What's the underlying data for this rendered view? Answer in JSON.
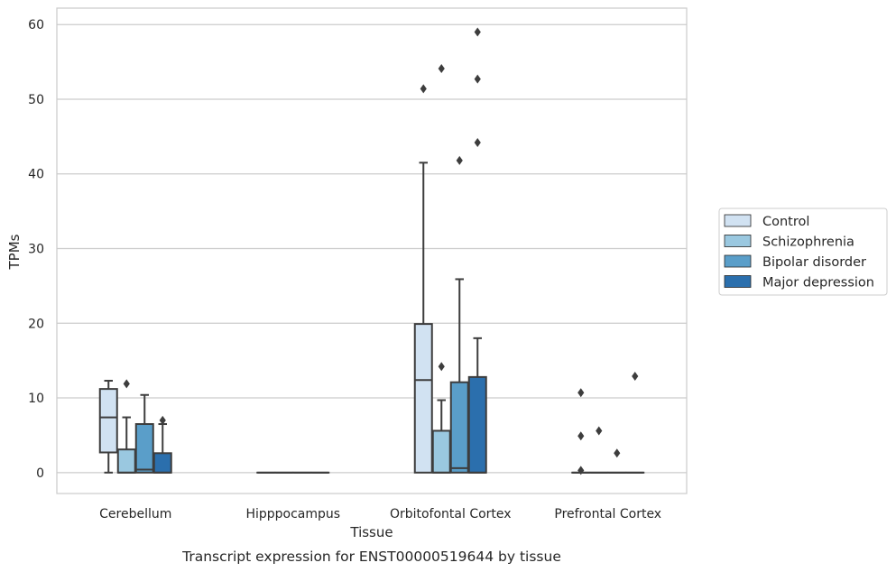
{
  "chart_data": {
    "type": "boxplot",
    "title": "",
    "caption": "Transcript expression for ENST00000519644 by tissue",
    "xlabel": "Tissue",
    "ylabel": "TPMs",
    "ylim": [
      -2.8,
      62.2
    ],
    "yticks": [
      0,
      10,
      20,
      30,
      40,
      50,
      60
    ],
    "grid": "horizontal",
    "legend_position": "right",
    "categories": [
      "Cerebellum",
      "Hipppocampus",
      "Orbitofontal Cortex",
      "Prefrontal Cortex"
    ],
    "series": [
      {
        "name": "Control",
        "color": "#d1e2f2",
        "boxes": [
          {
            "whislo": 0,
            "q1": 2.7,
            "med": 7.4,
            "q3": 11.2,
            "whishi": 12.3,
            "fliers": []
          },
          {
            "whislo": 0,
            "q1": 0,
            "med": 0,
            "q3": 0,
            "whishi": 0,
            "fliers": []
          },
          {
            "whislo": 0,
            "q1": 0,
            "med": 12.4,
            "q3": 19.9,
            "whishi": 41.5,
            "fliers": [
              51.4
            ]
          },
          {
            "whislo": 0,
            "q1": 0,
            "med": 0,
            "q3": 0,
            "whishi": 0,
            "fliers": [
              10.7,
              4.9,
              0.3
            ]
          }
        ]
      },
      {
        "name": "Schizophrenia",
        "color": "#9ac8e0",
        "boxes": [
          {
            "whislo": 0,
            "q1": 0,
            "med": 0,
            "q3": 3.1,
            "whishi": 7.4,
            "fliers": [
              11.9
            ]
          },
          {
            "whislo": 0,
            "q1": 0,
            "med": 0,
            "q3": 0,
            "whishi": 0,
            "fliers": []
          },
          {
            "whislo": 0,
            "q1": 0,
            "med": 0,
            "q3": 5.6,
            "whishi": 9.7,
            "fliers": [
              54.1,
              14.2
            ]
          },
          {
            "whislo": 0,
            "q1": 0,
            "med": 0,
            "q3": 0,
            "whishi": 0,
            "fliers": [
              5.6
            ]
          }
        ]
      },
      {
        "name": "Bipolar disorder",
        "color": "#5a9ec9",
        "boxes": [
          {
            "whislo": 0,
            "q1": 0,
            "med": 0.4,
            "q3": 6.5,
            "whishi": 10.4,
            "fliers": []
          },
          {
            "whislo": 0,
            "q1": 0,
            "med": 0,
            "q3": 0,
            "whishi": 0,
            "fliers": []
          },
          {
            "whislo": 0,
            "q1": 0,
            "med": 0.6,
            "q3": 12.1,
            "whishi": 25.9,
            "fliers": [
              41.8
            ]
          },
          {
            "whislo": 0,
            "q1": 0,
            "med": 0,
            "q3": 0,
            "whishi": 0,
            "fliers": [
              2.6
            ]
          }
        ]
      },
      {
        "name": "Major depression",
        "color": "#2b6fad",
        "boxes": [
          {
            "whislo": 0,
            "q1": 0,
            "med": 0,
            "q3": 2.6,
            "whishi": 6.5,
            "fliers": [
              7.0
            ]
          },
          {
            "whislo": 0,
            "q1": 0,
            "med": 0,
            "q3": 0,
            "whishi": 0,
            "fliers": []
          },
          {
            "whislo": 0,
            "q1": 0,
            "med": 0,
            "q3": 12.8,
            "whishi": 18.0,
            "fliers": [
              59.0,
              52.7,
              44.2
            ]
          },
          {
            "whislo": 0,
            "q1": 0,
            "med": 0,
            "q3": 0,
            "whishi": 0,
            "fliers": [
              12.9
            ]
          }
        ]
      }
    ]
  }
}
